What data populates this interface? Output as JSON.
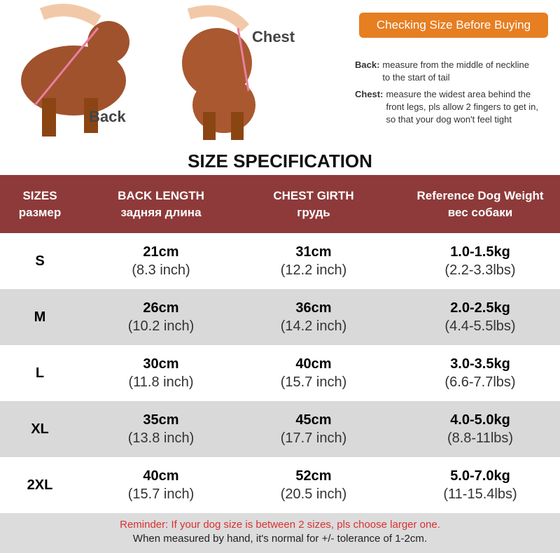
{
  "header": {
    "back_label": "Back",
    "chest_label": "Chest",
    "button": "Checking Size Before Buying",
    "instructions": [
      {
        "label": "Back:",
        "lines": [
          "measure from the middle of neckline",
          "to the start of tail"
        ]
      },
      {
        "label": "Chest:",
        "lines": [
          "measure the widest area behind the",
          "front legs, pls allow 2 fingers to get in,",
          "so that your dog won't feel tight"
        ]
      }
    ]
  },
  "title": "SIZE SPECIFICATION",
  "table": {
    "headers": [
      [
        "SIZES",
        "размер"
      ],
      [
        "BACK LENGTH",
        "задняя длина"
      ],
      [
        "CHEST GIRTH",
        "грудь"
      ],
      [
        "Reference Dog Weight",
        "вес собаки"
      ]
    ],
    "rows": [
      [
        "S",
        [
          "21cm",
          "(8.3 inch)"
        ],
        [
          "31cm",
          "(12.2 inch)"
        ],
        [
          "1.0-1.5kg",
          "(2.2-3.3lbs)"
        ]
      ],
      [
        "M",
        [
          "26cm",
          "(10.2 inch)"
        ],
        [
          "36cm",
          "(14.2 inch)"
        ],
        [
          "2.0-2.5kg",
          "(4.4-5.5lbs)"
        ]
      ],
      [
        "L",
        [
          "30cm",
          "(11.8 inch)"
        ],
        [
          "40cm",
          "(15.7 inch)"
        ],
        [
          "3.0-3.5kg",
          "(6.6-7.7lbs)"
        ]
      ],
      [
        "XL",
        [
          "35cm",
          "(13.8 inch)"
        ],
        [
          "45cm",
          "(17.7 inch)"
        ],
        [
          "4.0-5.0kg",
          "(8.8-11lbs)"
        ]
      ],
      [
        "2XL",
        [
          "40cm",
          "(15.7 inch)"
        ],
        [
          "52cm",
          "(20.5 inch)"
        ],
        [
          "5.0-7.0kg",
          "(11-15.4lbs)"
        ]
      ]
    ]
  },
  "footer": {
    "reminder": "Reminder: If your dog size is between 2 sizes, pls choose larger one.",
    "note": "When measured by hand, it's normal for +/- tolerance of 1-2cm."
  }
}
